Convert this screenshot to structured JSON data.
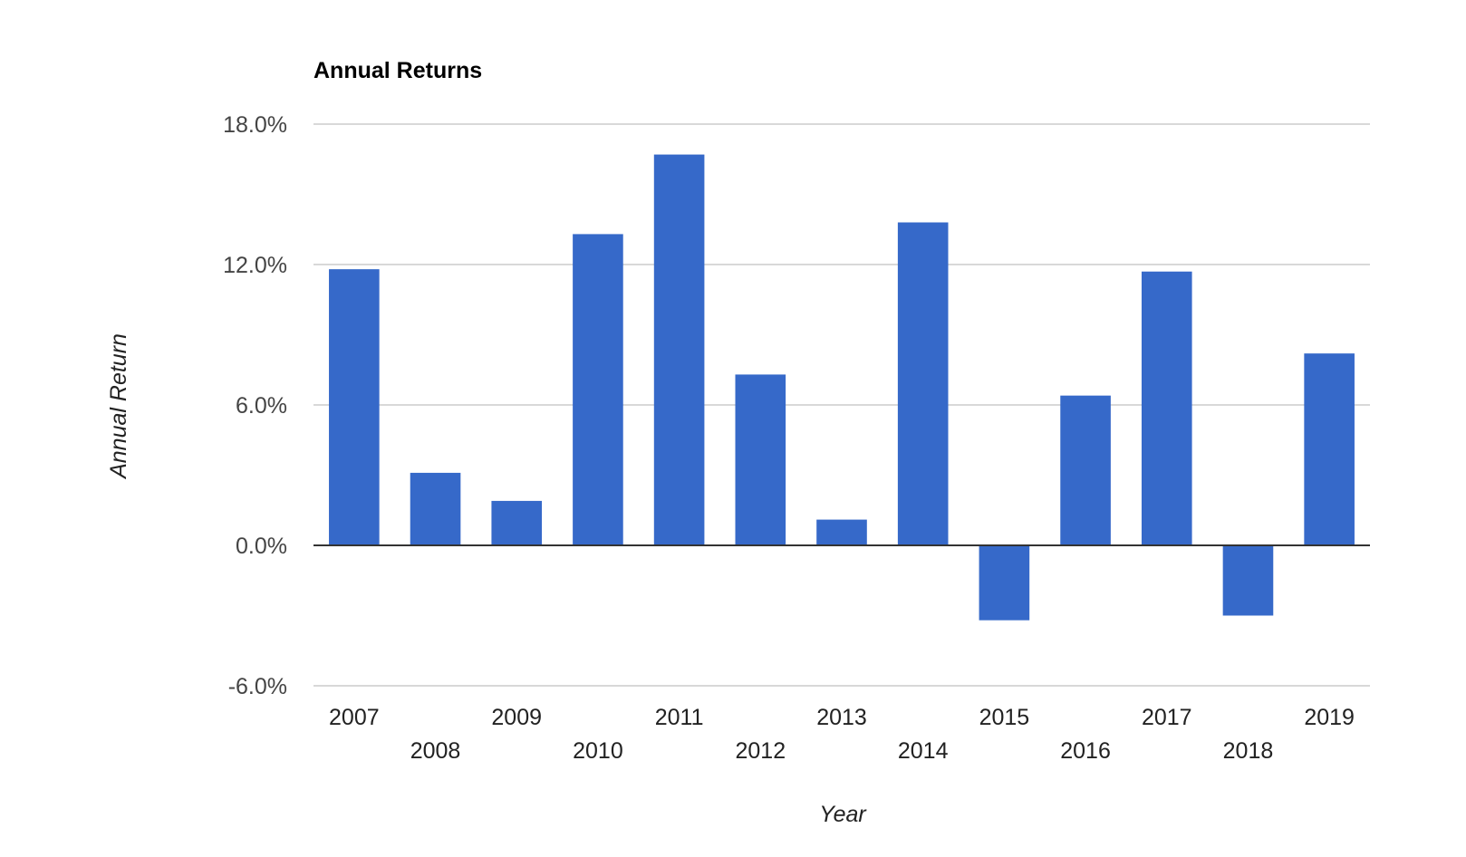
{
  "chart_data": {
    "type": "bar",
    "title": "Annual Returns",
    "xlabel": "Year",
    "ylabel": "Annual Return",
    "categories": [
      "2007",
      "2008",
      "2009",
      "2010",
      "2011",
      "2012",
      "2013",
      "2014",
      "2015",
      "2016",
      "2017",
      "2018",
      "2019"
    ],
    "values": [
      11.8,
      3.1,
      1.9,
      13.3,
      16.7,
      7.3,
      1.1,
      13.8,
      -3.2,
      6.4,
      11.7,
      -3.0,
      8.2
    ],
    "ylim": [
      -6.0,
      18.0
    ],
    "yticks": [
      18.0,
      12.0,
      6.0,
      0.0,
      -6.0
    ],
    "ytick_labels": [
      "18.0%",
      "12.0%",
      "6.0%",
      "0.0%",
      "-6.0%"
    ],
    "grid": true,
    "legend": "none",
    "bar_color": "#3669c9"
  }
}
